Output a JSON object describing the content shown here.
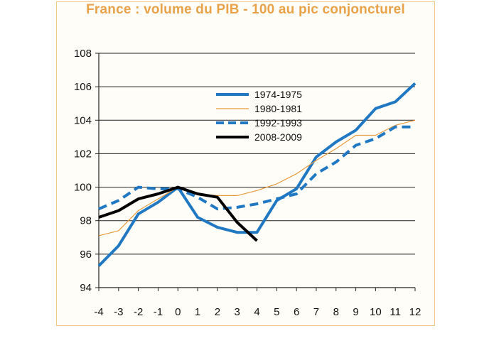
{
  "chart_data": {
    "type": "line",
    "title": "France : volume du PIB - 100 au pic conjoncturel",
    "xlabel": "",
    "ylabel": "",
    "x": [
      -4,
      -3,
      -2,
      -1,
      0,
      1,
      2,
      3,
      4,
      5,
      6,
      7,
      8,
      9,
      10,
      11,
      12
    ],
    "xlim": [
      -4,
      12
    ],
    "ylim": [
      94,
      108
    ],
    "yticks": [
      94,
      96,
      98,
      100,
      102,
      104,
      106,
      108
    ],
    "grid": "horizontal",
    "legend_position": "top-center",
    "series": [
      {
        "name": "1974-1975",
        "color": "#1f78c1",
        "style": "solid-thick",
        "x": [
          -4,
          -3,
          -2,
          -1,
          0,
          1,
          2,
          3,
          4,
          5,
          6,
          7,
          8,
          9,
          10,
          11,
          12
        ],
        "values": [
          95.3,
          96.5,
          98.4,
          99.1,
          100.0,
          98.2,
          97.6,
          97.3,
          97.3,
          99.2,
          99.9,
          101.8,
          102.7,
          103.4,
          104.7,
          105.1,
          106.2
        ]
      },
      {
        "name": "1980-1981",
        "color": "#e89a3c",
        "style": "solid-thin",
        "x": [
          -4,
          -3,
          -2,
          -1,
          0,
          1,
          2,
          3,
          4,
          5,
          6,
          7,
          8,
          9,
          10,
          11,
          12
        ],
        "values": [
          97.1,
          97.4,
          98.6,
          99.3,
          100.0,
          99.6,
          99.5,
          99.5,
          99.8,
          100.2,
          100.8,
          101.6,
          102.3,
          103.1,
          103.1,
          103.7,
          104.0
        ]
      },
      {
        "name": "1992-1993",
        "color": "#1f78c1",
        "style": "dashed",
        "x": [
          -4,
          -3,
          -2,
          -1,
          0,
          1,
          2,
          3,
          4,
          5,
          6,
          7,
          8,
          9,
          10,
          11,
          12
        ],
        "values": [
          98.7,
          99.2,
          100.0,
          99.9,
          99.9,
          99.4,
          98.7,
          98.8,
          99.0,
          99.3,
          99.6,
          100.8,
          101.5,
          102.5,
          102.9,
          103.6,
          103.6
        ]
      },
      {
        "name": "2008-2009",
        "color": "#000000",
        "style": "solid-thick",
        "x": [
          -4,
          -3,
          -2,
          -1,
          0,
          1,
          2,
          3,
          4
        ],
        "values": [
          98.2,
          98.6,
          99.3,
          99.6,
          100.0,
          99.6,
          99.4,
          97.9,
          96.8
        ]
      }
    ]
  }
}
